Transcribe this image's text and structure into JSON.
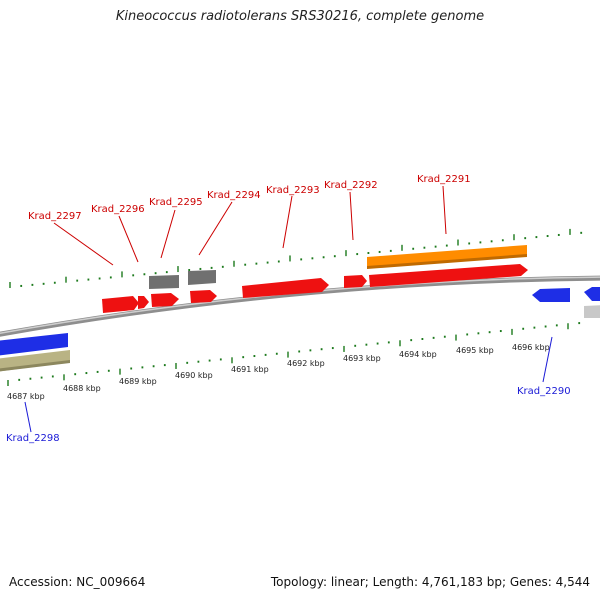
{
  "title": "Kineococcus radiotolerans SRS30216, complete genome",
  "footer": {
    "accession": "Accession: NC_009664",
    "summary": "Topology: linear; Length: 4,761,183 bp; Genes: 4,544"
  },
  "colors": {
    "forward_label": "#cc0000",
    "reverse_label": "#1a1ad6",
    "cds": "#ee1111",
    "pseudo": "#6e6e6e",
    "rna": "#ff8c00",
    "reverse_cds": "#1e2ee6",
    "misc": "#b9b384",
    "ticks": "#1d7a1d",
    "backbone": "#9a9a9a"
  },
  "kbp_labels": [
    "4687 kbp",
    "4688 kbp",
    "4689 kbp",
    "4690 kbp",
    "4691 kbp",
    "4692 kbp",
    "4693 kbp",
    "4694 kbp",
    "4695 kbp",
    "4696 kbp"
  ],
  "gene_labels": {
    "forward": [
      "Krad_2297",
      "Krad_2296",
      "Krad_2295",
      "Krad_2294",
      "Krad_2293",
      "Krad_2292",
      "Krad_2291"
    ],
    "reverse": [
      "Krad_2298",
      "Krad_2290"
    ]
  }
}
